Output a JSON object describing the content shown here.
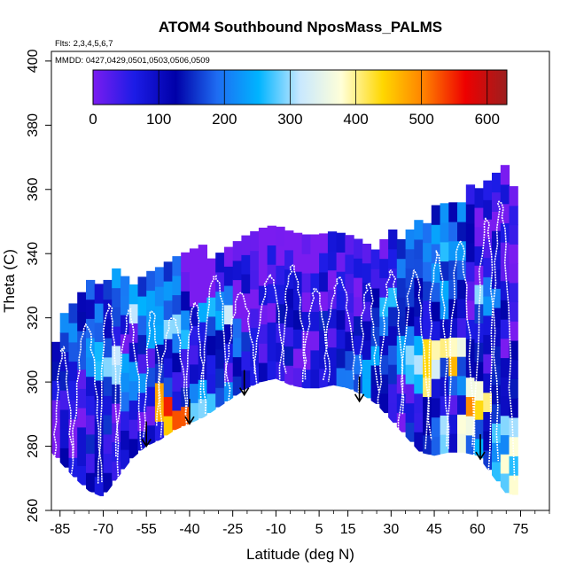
{
  "chart_data": {
    "type": "heatmap",
    "title": "ATOM4 Southbound NposMass_PALMS",
    "flights_label": "Flts: 2,3,4,5,6,7",
    "dates_label": "MMDD: 0427,0429,0501,0503,0506,0509",
    "xlabel": "Latitude (deg N)",
    "ylabel": "Theta (C)",
    "xlim": [
      -88,
      85
    ],
    "ylim": [
      260,
      403
    ],
    "x_ticks": [
      -85,
      -70,
      -55,
      -40,
      -25,
      -10,
      5,
      15,
      30,
      45,
      60,
      75
    ],
    "y_ticks": [
      260,
      280,
      300,
      320,
      340,
      360,
      380,
      400
    ],
    "colorbar": {
      "min": 0,
      "max": 630,
      "ticks": [
        0,
        100,
        200,
        300,
        400,
        500,
        600
      ],
      "colors": [
        "#7a1cf0",
        "#1c1ce6",
        "#0000a8",
        "#1e6cf2",
        "#00b4ff",
        "#c8e8ff",
        "#ffffd8",
        "#ffd700",
        "#ff8000",
        "#ee0000",
        "#9c1f1f"
      ]
    },
    "floor_boundary": {
      "lat": [
        -88,
        -85,
        -80,
        -75,
        -70,
        -65,
        -60,
        -55,
        -50,
        -45,
        -40,
        -35,
        -30,
        -25,
        -20,
        -15,
        -10,
        -5,
        0,
        5,
        10,
        15,
        20,
        25,
        30,
        35,
        40,
        45,
        50,
        55,
        60,
        65,
        70,
        72
      ],
      "theta": [
        278,
        275,
        270,
        266,
        264,
        270,
        276,
        280,
        282,
        285,
        287,
        289,
        292,
        295,
        298,
        300,
        301,
        299,
        298,
        298,
        299,
        298,
        296,
        293,
        288,
        283,
        278,
        277,
        278,
        278,
        277,
        271,
        265,
        265
      ]
    },
    "top_boundary": {
      "lat": [
        -88,
        -85,
        -80,
        -75,
        -70,
        -65,
        -60,
        -55,
        -50,
        -45,
        -40,
        -35,
        -30,
        -25,
        -20,
        -15,
        -10,
        -5,
        0,
        5,
        10,
        15,
        20,
        25,
        30,
        35,
        40,
        45,
        50,
        55,
        60,
        65,
        70,
        72
      ],
      "theta": [
        305,
        318,
        325,
        329,
        330,
        330,
        330,
        331,
        332,
        334,
        336,
        338,
        339,
        340,
        343,
        345,
        346,
        345,
        344,
        342,
        341,
        341,
        341,
        341,
        342,
        344,
        348,
        350,
        353,
        355,
        357,
        361,
        362,
        361
      ]
    },
    "heatmap_cells_lat_theta_value": [
      [
        -86,
        290,
        80
      ],
      [
        -86,
        300,
        140
      ],
      [
        -86,
        285,
        30
      ],
      [
        -82,
        280,
        20
      ],
      [
        -82,
        300,
        90
      ],
      [
        -82,
        312,
        210
      ],
      [
        -78,
        275,
        110
      ],
      [
        -78,
        295,
        60
      ],
      [
        -78,
        310,
        180
      ],
      [
        -74,
        270,
        70
      ],
      [
        -74,
        290,
        40
      ],
      [
        -74,
        305,
        200
      ],
      [
        -74,
        320,
        150
      ],
      [
        -70,
        280,
        90
      ],
      [
        -70,
        300,
        230
      ],
      [
        -70,
        318,
        120
      ],
      [
        -66,
        285,
        60
      ],
      [
        -66,
        305,
        250
      ],
      [
        -66,
        322,
        170
      ],
      [
        -62,
        295,
        190
      ],
      [
        -62,
        312,
        60
      ],
      [
        -62,
        325,
        220
      ],
      [
        -58,
        290,
        20
      ],
      [
        -58,
        305,
        80
      ],
      [
        -58,
        320,
        260
      ],
      [
        -54,
        285,
        40
      ],
      [
        -54,
        300,
        130
      ],
      [
        -54,
        315,
        240
      ],
      [
        -50,
        288,
        520
      ],
      [
        -50,
        305,
        70
      ],
      [
        -50,
        322,
        180
      ],
      [
        -46,
        295,
        110
      ],
      [
        -46,
        312,
        230
      ],
      [
        -42,
        300,
        60
      ],
      [
        -42,
        318,
        150
      ],
      [
        -38,
        295,
        240
      ],
      [
        -38,
        310,
        90
      ],
      [
        -38,
        325,
        30
      ],
      [
        -34,
        300,
        120
      ],
      [
        -34,
        318,
        200
      ],
      [
        -30,
        305,
        70
      ],
      [
        -30,
        322,
        260
      ],
      [
        -26,
        310,
        140
      ],
      [
        -26,
        328,
        40
      ],
      [
        -22,
        305,
        90
      ],
      [
        -22,
        320,
        20
      ],
      [
        -18,
        312,
        60
      ],
      [
        -18,
        330,
        10
      ],
      [
        -14,
        315,
        30
      ],
      [
        -14,
        335,
        5
      ],
      [
        -10,
        310,
        80
      ],
      [
        -10,
        330,
        20
      ],
      [
        -6,
        318,
        120
      ],
      [
        -6,
        335,
        10
      ],
      [
        -2,
        310,
        40
      ],
      [
        -2,
        328,
        15
      ],
      [
        2,
        315,
        100
      ],
      [
        2,
        332,
        20
      ],
      [
        6,
        310,
        60
      ],
      [
        6,
        325,
        30
      ],
      [
        10,
        312,
        90
      ],
      [
        10,
        330,
        25
      ],
      [
        14,
        305,
        150
      ],
      [
        14,
        322,
        40
      ],
      [
        18,
        310,
        110
      ],
      [
        18,
        328,
        60
      ],
      [
        22,
        302,
        200
      ],
      [
        22,
        318,
        90
      ],
      [
        26,
        298,
        130
      ],
      [
        26,
        315,
        210
      ],
      [
        30,
        292,
        80
      ],
      [
        30,
        310,
        170
      ],
      [
        34,
        288,
        60
      ],
      [
        34,
        305,
        240
      ],
      [
        38,
        285,
        100
      ],
      [
        38,
        300,
        320
      ],
      [
        38,
        320,
        150
      ],
      [
        42,
        282,
        180
      ],
      [
        42,
        302,
        380
      ],
      [
        42,
        318,
        90
      ],
      [
        46,
        282,
        260
      ],
      [
        46,
        300,
        120
      ],
      [
        46,
        325,
        200
      ],
      [
        50,
        285,
        90
      ],
      [
        50,
        305,
        420
      ],
      [
        50,
        322,
        160
      ],
      [
        54,
        282,
        310
      ],
      [
        54,
        300,
        170
      ],
      [
        54,
        318,
        60
      ],
      [
        58,
        280,
        200
      ],
      [
        58,
        293,
        430
      ],
      [
        58,
        310,
        110
      ],
      [
        62,
        282,
        150
      ],
      [
        62,
        298,
        80
      ],
      [
        62,
        320,
        230
      ],
      [
        66,
        278,
        260
      ],
      [
        66,
        295,
        120
      ],
      [
        66,
        315,
        60
      ],
      [
        70,
        275,
        330
      ],
      [
        70,
        300,
        150
      ],
      [
        70,
        330,
        30
      ]
    ],
    "flight_profiles": "white vertical profiles",
    "arrows_lat_theta": [
      [
        -55,
        280
      ],
      [
        -40,
        287
      ],
      [
        -21,
        296
      ],
      [
        19,
        294
      ],
      [
        61,
        276
      ]
    ]
  }
}
